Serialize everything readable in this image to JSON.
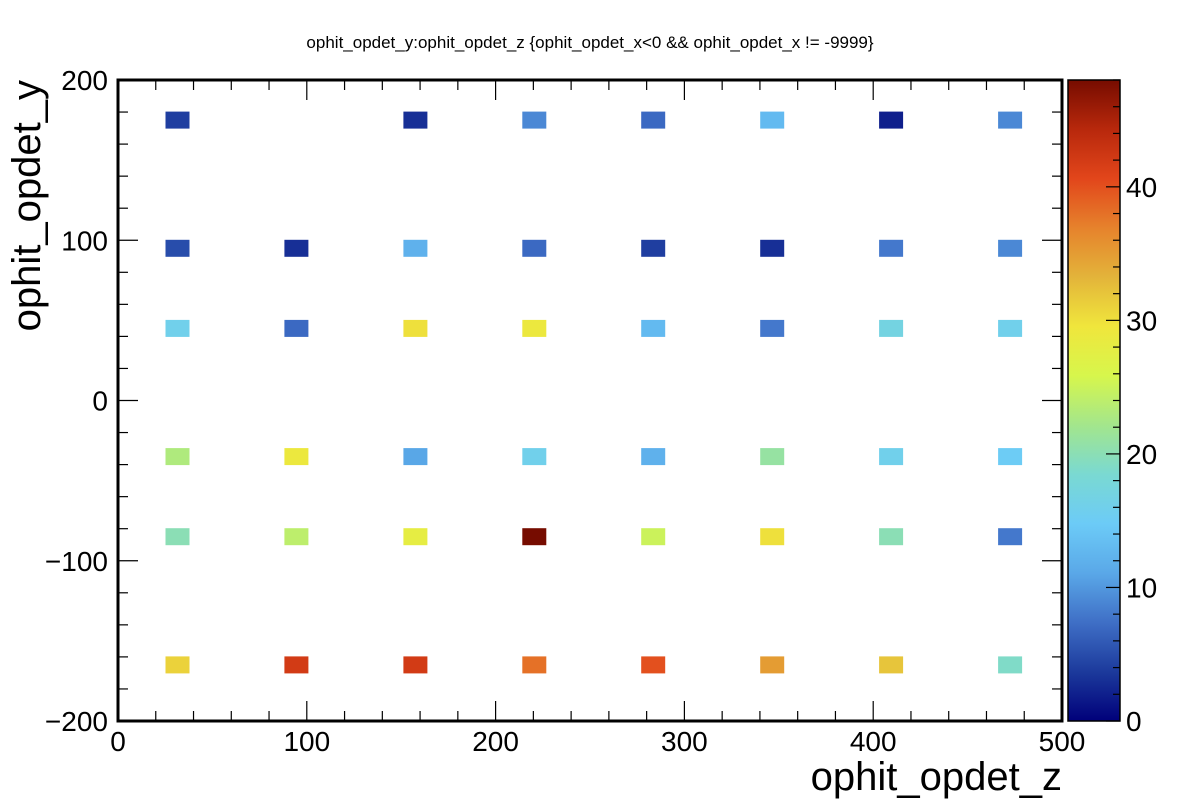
{
  "chart_data": {
    "type": "heatmap",
    "title": "ophit_opdet_y:ophit_opdet_z {ophit_opdet_x<0 && ophit_opdet_x != -9999}",
    "xlabel": "ophit_opdet_z",
    "ylabel": "ophit_opdet_y",
    "xlim": [
      0,
      500
    ],
    "ylim": [
      -200,
      200
    ],
    "zlim": [
      0,
      48
    ],
    "x_ticks": [
      0,
      100,
      200,
      300,
      400,
      500
    ],
    "y_ticks": [
      -200,
      -100,
      0,
      100,
      200
    ],
    "z_ticks": [
      0,
      10,
      20,
      30,
      40
    ],
    "x_tick_labels": [
      "0",
      "100",
      "200",
      "300",
      "400",
      "500"
    ],
    "y_tick_labels": [
      "−200",
      "−100",
      "0",
      "100",
      "200"
    ],
    "z_tick_labels": [
      "0",
      "10",
      "20",
      "30",
      "40"
    ],
    "x_centers": [
      31.5,
      94.5,
      157.5,
      220.5,
      283.5,
      346.5,
      409.5,
      472.5
    ],
    "y_centers": [
      175,
      95,
      45,
      -35,
      -85,
      -165
    ],
    "z": [
      [
        4,
        null,
        3,
        9,
        7,
        13,
        2,
        9
      ],
      [
        5,
        3,
        12,
        7,
        4,
        3,
        8,
        9
      ],
      [
        16,
        7,
        30,
        29,
        13,
        8,
        17,
        16
      ],
      [
        23,
        29,
        11,
        16,
        12,
        21,
        16,
        15
      ],
      [
        20,
        24,
        28,
        48,
        25,
        30,
        20,
        8
      ],
      [
        31,
        42,
        42,
        38,
        40,
        35,
        32,
        19
      ]
    ],
    "colormap": [
      "#00007a",
      "#1c3a9c",
      "#3f6fc6",
      "#5aa8e8",
      "#6ccbf7",
      "#7ad9d2",
      "#a3e68c",
      "#d7f64c",
      "#f0e63c",
      "#e3b43a",
      "#e6822c",
      "#e2461b",
      "#b8280c",
      "#760c00"
    ],
    "grid": false,
    "legend": "colorbar-right"
  }
}
